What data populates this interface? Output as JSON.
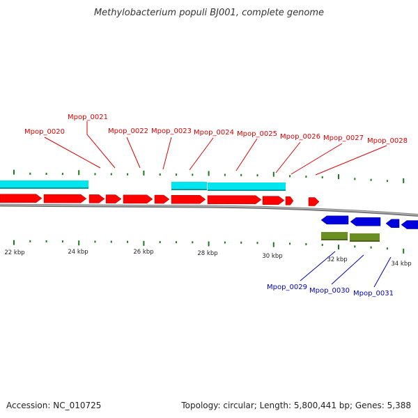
{
  "title": "Methylobacterium populi BJ001, complete genome",
  "footer": {
    "accession": "Accession: NC_010725",
    "summary": "Topology: circular; Length: 5,800,441 bp; Genes: 5,388"
  },
  "colors": {
    "forward_gene": "#ff0000",
    "reverse_gene": "#0000dd",
    "forward_label": "#dd0000",
    "reverse_label": "#0000bb",
    "forward_feature": "#00e5ee",
    "reverse_feature": "#6b8e23",
    "tick": "#1a7a1a",
    "backbone": "#888888"
  },
  "scale": {
    "ticks": [
      "22 kbp",
      "24 kbp",
      "26 kbp",
      "28 kbp",
      "30 kbp",
      "32 kbp",
      "34 kbp"
    ]
  },
  "forward_labels": [
    "Mpop_0020",
    "Mpop_0021",
    "Mpop_0022",
    "Mpop_0023",
    "Mpop_0024",
    "Mpop_0025",
    "Mpop_0026",
    "Mpop_0027",
    "Mpop_0028"
  ],
  "reverse_labels": [
    "Mpop_0029",
    "Mpop_0030",
    "Mpop_0031"
  ]
}
